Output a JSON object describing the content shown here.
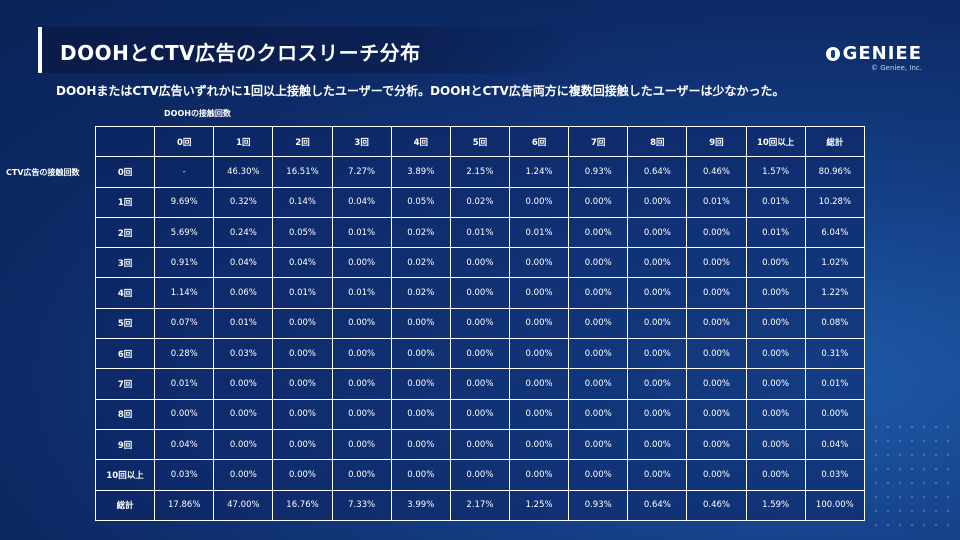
{
  "title": "DOOHとCTV広告のクロスリーチ分布",
  "logo": {
    "text": "GENIEE",
    "copyright": "© Geniee, Inc."
  },
  "subtitle": "DOOHまたはCTV広告いずれかに1回以上接触したユーザーで分析。DOOHとCTV広告両方に複数回接触したユーザーは少なかった。",
  "axis_top_label": "DOOHの接触回数",
  "axis_left_label": "CTV広告の接触回数",
  "table": {
    "header": [
      "",
      "0回",
      "1回",
      "2回",
      "3回",
      "4回",
      "5回",
      "6回",
      "7回",
      "8回",
      "9回",
      "10回以上",
      "総計"
    ],
    "rows": [
      [
        "0回",
        "-",
        "46.30%",
        "16.51%",
        "7.27%",
        "3.89%",
        "2.15%",
        "1.24%",
        "0.93%",
        "0.64%",
        "0.46%",
        "1.57%",
        "80.96%"
      ],
      [
        "1回",
        "9.69%",
        "0.32%",
        "0.14%",
        "0.04%",
        "0.05%",
        "0.02%",
        "0.00%",
        "0.00%",
        "0.00%",
        "0.01%",
        "0.01%",
        "10.28%"
      ],
      [
        "2回",
        "5.69%",
        "0.24%",
        "0.05%",
        "0.01%",
        "0.02%",
        "0.01%",
        "0.01%",
        "0.00%",
        "0.00%",
        "0.00%",
        "0.01%",
        "6.04%"
      ],
      [
        "3回",
        "0.91%",
        "0.04%",
        "0.04%",
        "0.00%",
        "0.02%",
        "0.00%",
        "0.00%",
        "0.00%",
        "0.00%",
        "0.00%",
        "0.00%",
        "1.02%"
      ],
      [
        "4回",
        "1.14%",
        "0.06%",
        "0.01%",
        "0.01%",
        "0.02%",
        "0.00%",
        "0.00%",
        "0.00%",
        "0.00%",
        "0.00%",
        "0.00%",
        "1.22%"
      ],
      [
        "5回",
        "0.07%",
        "0.01%",
        "0.00%",
        "0.00%",
        "0.00%",
        "0.00%",
        "0.00%",
        "0.00%",
        "0.00%",
        "0.00%",
        "0.00%",
        "0.08%"
      ],
      [
        "6回",
        "0.28%",
        "0.03%",
        "0.00%",
        "0.00%",
        "0.00%",
        "0.00%",
        "0.00%",
        "0.00%",
        "0.00%",
        "0.00%",
        "0.00%",
        "0.31%"
      ],
      [
        "7回",
        "0.01%",
        "0.00%",
        "0.00%",
        "0.00%",
        "0.00%",
        "0.00%",
        "0.00%",
        "0.00%",
        "0.00%",
        "0.00%",
        "0.00%",
        "0.01%"
      ],
      [
        "8回",
        "0.00%",
        "0.00%",
        "0.00%",
        "0.00%",
        "0.00%",
        "0.00%",
        "0.00%",
        "0.00%",
        "0.00%",
        "0.00%",
        "0.00%",
        "0.00%"
      ],
      [
        "9回",
        "0.04%",
        "0.00%",
        "0.00%",
        "0.00%",
        "0.00%",
        "0.00%",
        "0.00%",
        "0.00%",
        "0.00%",
        "0.00%",
        "0.00%",
        "0.04%"
      ],
      [
        "10回以上",
        "0.03%",
        "0.00%",
        "0.00%",
        "0.00%",
        "0.00%",
        "0.00%",
        "0.00%",
        "0.00%",
        "0.00%",
        "0.00%",
        "0.00%",
        "0.03%"
      ],
      [
        "総計",
        "17.86%",
        "47.00%",
        "16.76%",
        "7.33%",
        "3.99%",
        "2.17%",
        "1.25%",
        "0.93%",
        "0.64%",
        "0.46%",
        "1.59%",
        "100.00%"
      ]
    ]
  }
}
